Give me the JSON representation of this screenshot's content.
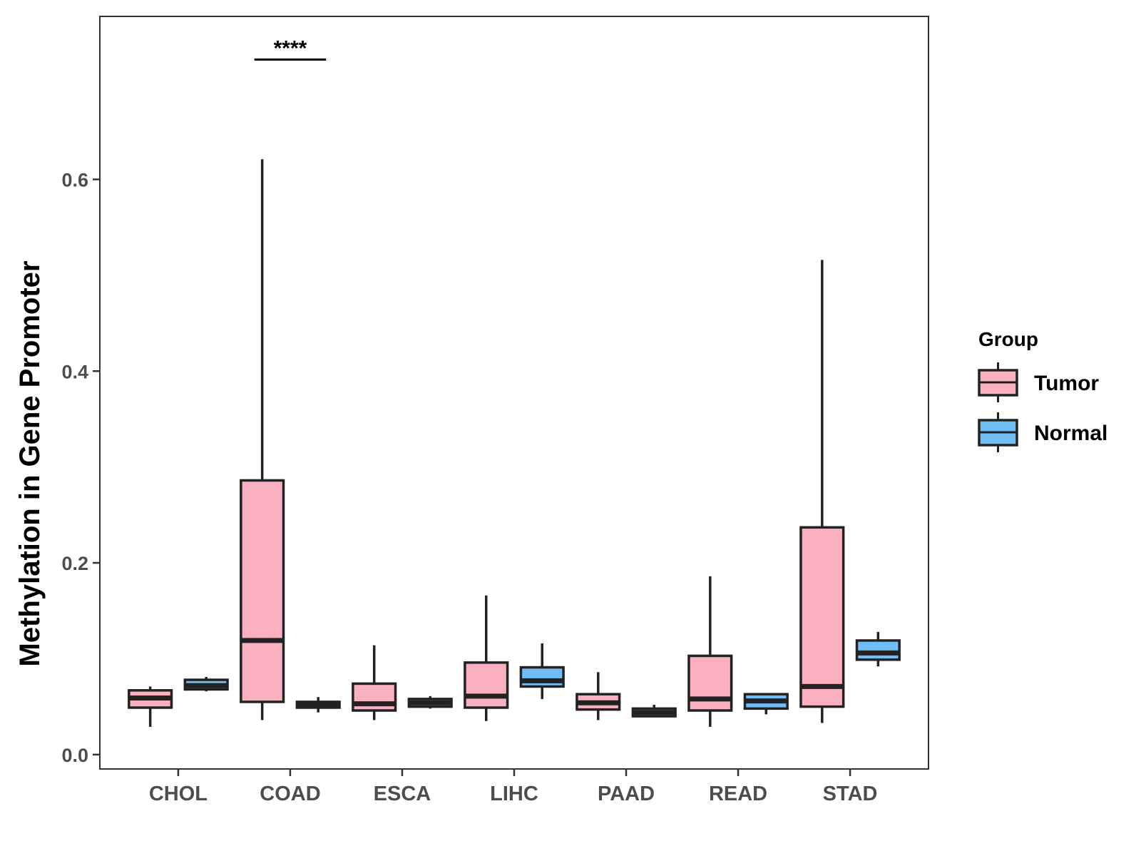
{
  "chart_data": {
    "type": "boxplot",
    "title": "",
    "xlabel": "",
    "ylabel": "Methylation in Gene Promoter",
    "ylim": [
      -0.015,
      0.77
    ],
    "yticks": [
      0.0,
      0.2,
      0.4,
      0.6
    ],
    "ytick_labels": [
      "0.0",
      "0.2",
      "0.4",
      "0.6"
    ],
    "categories": [
      "CHOL",
      "COAD",
      "ESCA",
      "LIHC",
      "PAAD",
      "READ",
      "STAD"
    ],
    "legend": {
      "title": "Group",
      "position": "right",
      "entries": [
        {
          "name": "Tumor",
          "color": "#FBB0C0"
        },
        {
          "name": "Normal",
          "color": "#6FBEF6"
        }
      ]
    },
    "series": [
      {
        "name": "Tumor",
        "color": "#FBB0C0",
        "boxes": [
          {
            "category": "CHOL",
            "min": 0.029,
            "q1": 0.049,
            "median": 0.059,
            "q3": 0.067,
            "max": 0.071
          },
          {
            "category": "COAD",
            "min": 0.036,
            "q1": 0.055,
            "median": 0.119,
            "q3": 0.286,
            "max": 0.621
          },
          {
            "category": "ESCA",
            "min": 0.036,
            "q1": 0.046,
            "median": 0.053,
            "q3": 0.074,
            "max": 0.114
          },
          {
            "category": "LIHC",
            "min": 0.035,
            "q1": 0.049,
            "median": 0.061,
            "q3": 0.096,
            "max": 0.166
          },
          {
            "category": "PAAD",
            "min": 0.036,
            "q1": 0.047,
            "median": 0.054,
            "q3": 0.063,
            "max": 0.086
          },
          {
            "category": "READ",
            "min": 0.029,
            "q1": 0.046,
            "median": 0.058,
            "q3": 0.103,
            "max": 0.186
          },
          {
            "category": "STAD",
            "min": 0.033,
            "q1": 0.05,
            "median": 0.071,
            "q3": 0.237,
            "max": 0.516
          }
        ]
      },
      {
        "name": "Normal",
        "color": "#6FBEF6",
        "boxes": [
          {
            "category": "CHOL",
            "min": 0.066,
            "q1": 0.068,
            "median": 0.072,
            "q3": 0.078,
            "max": 0.081
          },
          {
            "category": "COAD",
            "min": 0.044,
            "q1": 0.049,
            "median": 0.052,
            "q3": 0.055,
            "max": 0.06
          },
          {
            "category": "ESCA",
            "min": 0.048,
            "q1": 0.05,
            "median": 0.054,
            "q3": 0.058,
            "max": 0.061
          },
          {
            "category": "LIHC",
            "min": 0.058,
            "q1": 0.071,
            "median": 0.077,
            "q3": 0.091,
            "max": 0.116
          },
          {
            "category": "PAAD",
            "min": 0.04,
            "q1": 0.04,
            "median": 0.044,
            "q3": 0.048,
            "max": 0.052
          },
          {
            "category": "READ",
            "min": 0.042,
            "q1": 0.048,
            "median": 0.056,
            "q3": 0.063,
            "max": 0.064
          },
          {
            "category": "STAD",
            "min": 0.092,
            "q1": 0.099,
            "median": 0.106,
            "q3": 0.119,
            "max": 0.128
          }
        ]
      }
    ],
    "annotations": [
      {
        "category": "COAD",
        "text": "****",
        "y": 0.725
      }
    ]
  }
}
